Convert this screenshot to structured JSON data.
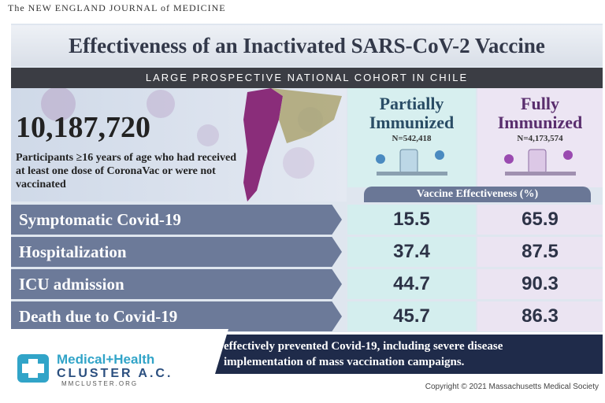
{
  "journal": "The NEW ENGLAND JOURNAL of MEDICINE",
  "title": "Effectiveness of an Inactivated SARS-CoV-2 Vaccine",
  "subtitle": "LARGE PROSPECTIVE NATIONAL COHORT IN CHILE",
  "participants": "10,187,720",
  "description": "Participants ≥16 years of age who had received at least one dose of CoronaVac or were not vaccinated",
  "table": {
    "columns": [
      {
        "name": "Partially Immunized",
        "n": "N=542,418"
      },
      {
        "name": "Fully Immunized",
        "n": "N=4,173,574"
      }
    ],
    "header": "Vaccine Effectiveness (%)",
    "rows": [
      {
        "label": "Symptomatic Covid-19",
        "values": [
          15.5,
          65.9
        ]
      },
      {
        "label": "Hospitalization",
        "values": [
          37.4,
          87.5
        ]
      },
      {
        "label": "ICU admission",
        "values": [
          44.7,
          90.3
        ]
      },
      {
        "label": "Death due to Covid-19",
        "values": [
          45.7,
          86.3
        ]
      }
    ]
  },
  "conclusion": [
    "effectively prevented Covid-19, including severe disease",
    "implementation of mass vaccination campaigns."
  ],
  "logo": {
    "name": "Medical+Health",
    "subname": "CLUSTER A.C.",
    "url": "MMCLUSTER.ORG"
  },
  "copyright": "Copyright © 2021 Massachusetts Medical Society"
}
